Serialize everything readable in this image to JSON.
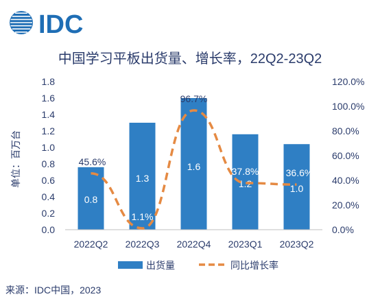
{
  "logo": {
    "text": "IDC",
    "color": "#1f6eb5"
  },
  "source": "来源：IDC中国，2023",
  "chart_data": {
    "type": "bar",
    "title": "中国学习平板出货量、增长率，22Q2-23Q2",
    "categories": [
      "2022Q2",
      "2022Q3",
      "2022Q4",
      "2023Q1",
      "2023Q2"
    ],
    "series": [
      {
        "name": "出货量",
        "type": "bar",
        "axis": "left",
        "values": [
          0.76,
          1.3,
          1.6,
          1.16,
          1.04
        ],
        "labels": [
          "0.8",
          "1.3",
          "1.6",
          "1.2",
          "1.0"
        ],
        "color": "#2f7fc4"
      },
      {
        "name": "同比增长率",
        "type": "line",
        "axis": "right",
        "style": "dashed",
        "values": [
          45.6,
          1.1,
          96.7,
          37.8,
          36.6
        ],
        "labels": [
          "45.6%",
          "1.1%",
          "96.7%",
          "37.8%",
          "36.6%"
        ],
        "color": "#e58a43"
      }
    ],
    "ylabel": "单位：百万台",
    "ylim": [
      0,
      1.8
    ],
    "yticks": [
      "0.0",
      "0.2",
      "0.4",
      "0.6",
      "0.8",
      "1.0",
      "1.2",
      "1.4",
      "1.6",
      "1.8"
    ],
    "y2lim": [
      0,
      120
    ],
    "y2ticks": [
      "0.0%",
      "20.0%",
      "40.0%",
      "60.0%",
      "80.0%",
      "100.0%",
      "120.0%"
    ],
    "grid": false,
    "legend": "bottom-center",
    "text_color": "#2a3b6b"
  }
}
